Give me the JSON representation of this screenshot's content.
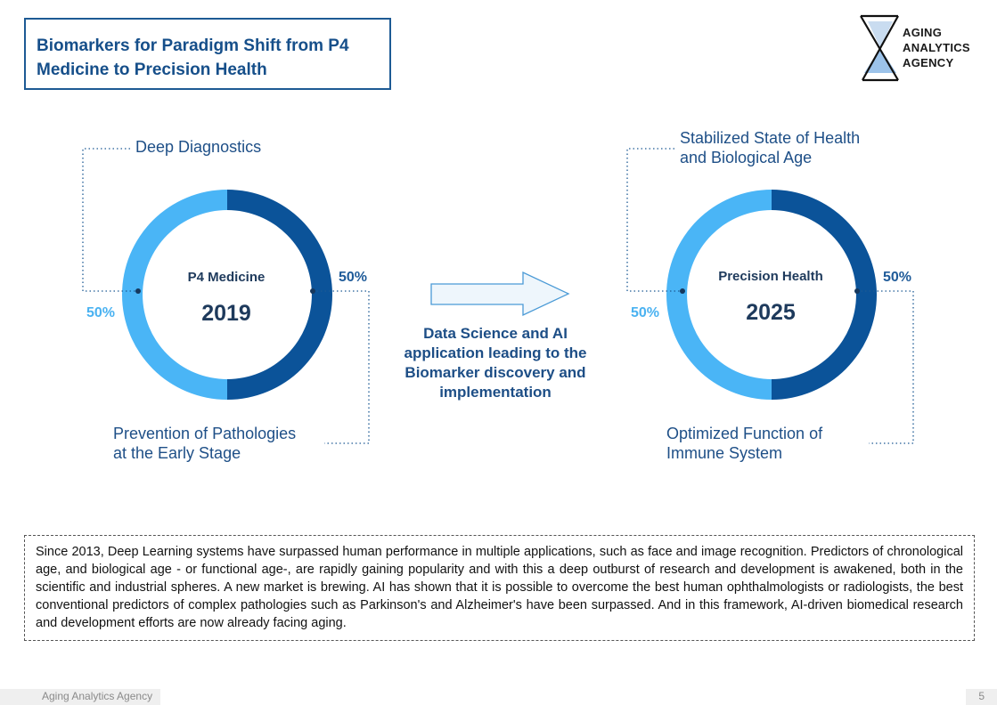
{
  "title": {
    "line1": "Biomarkers for Paradigm Shift from P4",
    "line2": "Medicine to Precision Health"
  },
  "logo": {
    "icon": "hourglass-icon",
    "line1": "AGING",
    "line2": "ANALYTICS",
    "line3": "AGENCY"
  },
  "colors": {
    "dark_blue": "#0b5399",
    "light_blue": "#4ab5f6",
    "title_blue": "#164f8a"
  },
  "chart_data": [
    {
      "type": "pie",
      "center_title": "P4 Medicine",
      "center_year": "2019",
      "slices": [
        {
          "label": "Deep Diagnostics",
          "value": 50,
          "value_label": "50%",
          "color": "#4ab5f6"
        },
        {
          "label_line1": "Prevention of Pathologies",
          "label_line2": "at the Early Stage",
          "value": 50,
          "value_label": "50%",
          "color": "#0b5399"
        }
      ]
    },
    {
      "type": "pie",
      "center_title": "Precision Health",
      "center_year": "2025",
      "slices": [
        {
          "label_line1": "Stabilized State of Health",
          "label_line2": "and Biological Age",
          "value": 50,
          "value_label": "50%",
          "color": "#4ab5f6"
        },
        {
          "label_line1": "Optimized Function of",
          "label_line2": "Immune System",
          "value": 50,
          "value_label": "50%",
          "color": "#0b5399"
        }
      ]
    }
  ],
  "arrow": {
    "icon": "right-arrow-icon",
    "caption_lines": [
      "Data Science and AI",
      "application leading to the",
      "Biomarker discovery and",
      "implementation"
    ]
  },
  "note": "Since 2013, Deep Learning systems have surpassed human performance in multiple applications, such as face and image recognition. Predictors of chronological age, and biological age - or functional age-, are rapidly gaining popularity and with this a deep outburst of research and development is awakened, both in the scientific and industrial spheres. A new market is brewing. AI has shown that it is possible to overcome the best human ophthalmologists or radiologists, the best conventional predictors of complex pathologies such as Parkinson's and Alzheimer's have been surpassed. And in this framework, AI-driven biomedical research and development efforts are now already facing aging.",
  "footer": {
    "source": "Aging Analytics Agency",
    "page": "5"
  }
}
